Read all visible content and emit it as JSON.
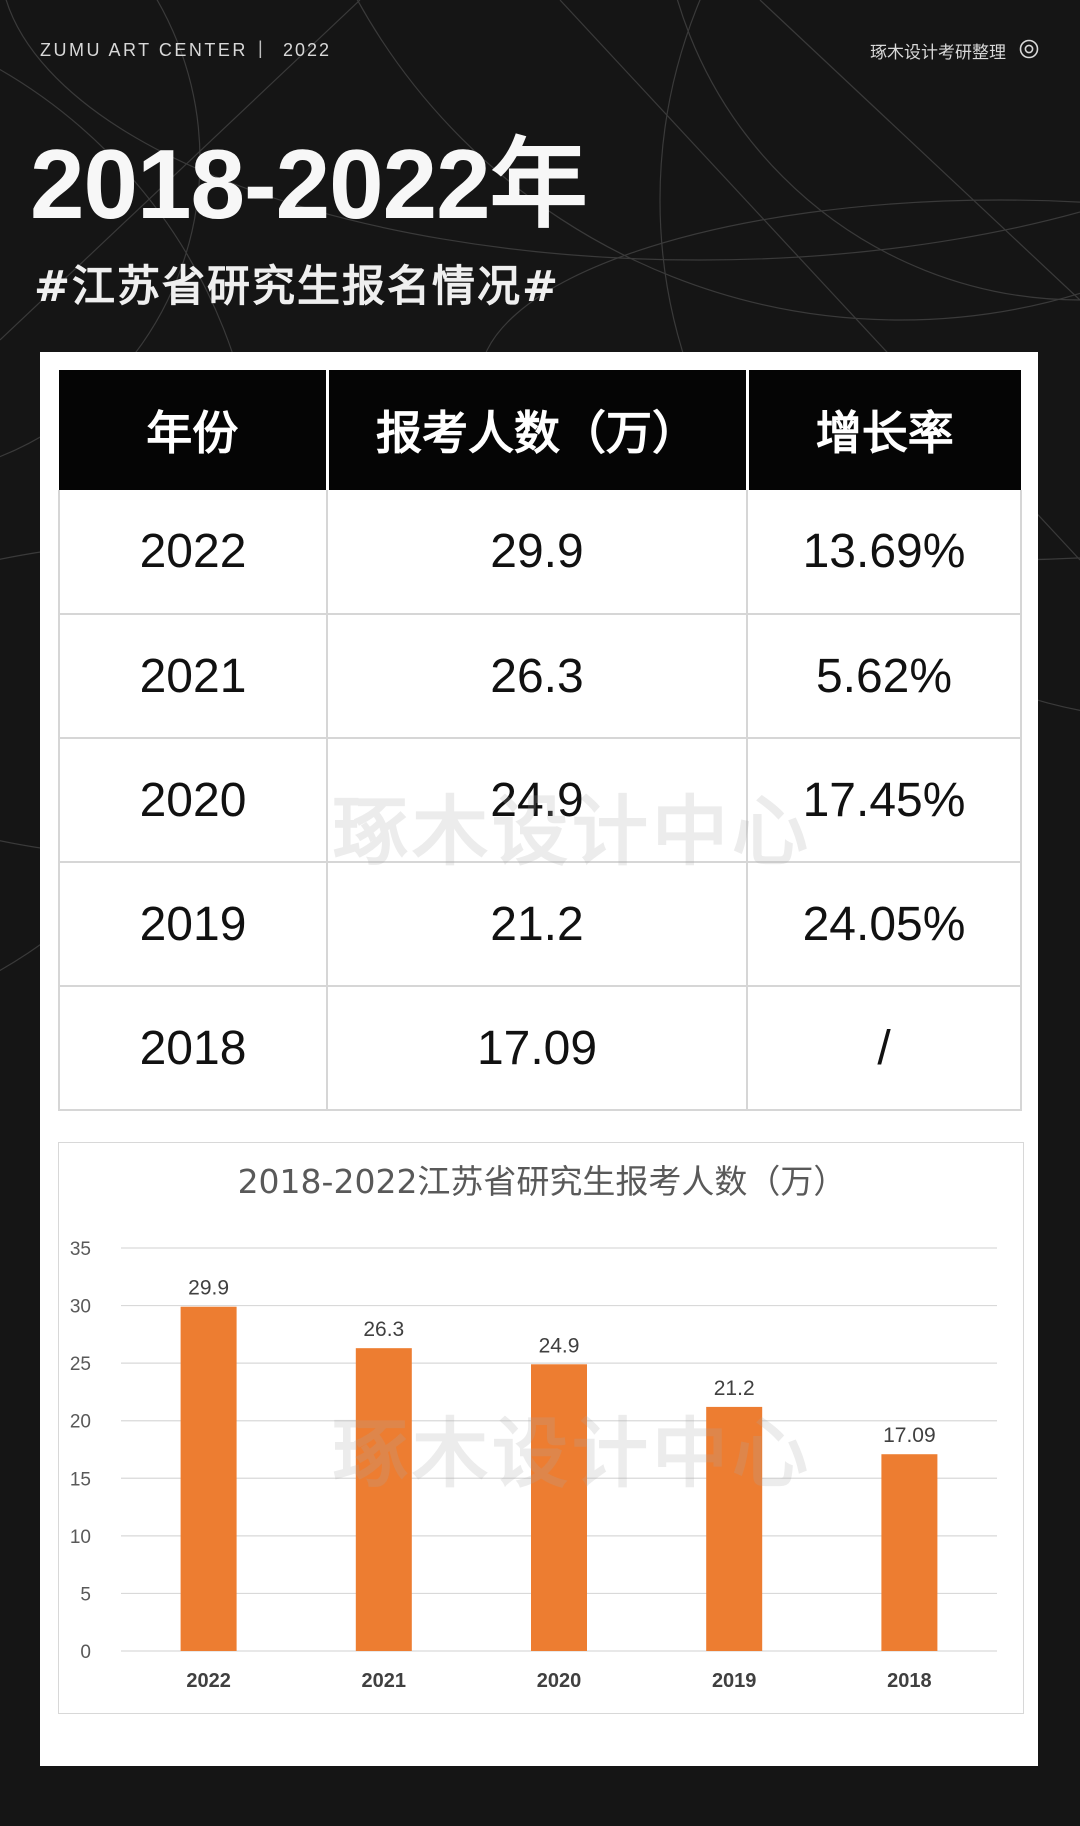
{
  "header": {
    "brand": "ZUMU ART CENTER",
    "separator": "|",
    "year": "2022",
    "credit": "琢木设计考研整理"
  },
  "title": "2018-2022年",
  "subtitle": "#江苏省研究生报名情况#",
  "table": {
    "headers": [
      "年份",
      "报考人数（万）",
      "增长率"
    ],
    "rows": [
      [
        "2022",
        "29.9",
        "13.69%"
      ],
      [
        "2021",
        "26.3",
        "5.62%"
      ],
      [
        "2020",
        "24.9",
        "17.45%"
      ],
      [
        "2019",
        "21.2",
        "24.05%"
      ],
      [
        "2018",
        "17.09",
        "/"
      ]
    ]
  },
  "watermark": "琢木设计中心",
  "chart_data": {
    "type": "bar",
    "title": "2018-2022江苏省研究生报考人数（万）",
    "categories": [
      "2022",
      "2021",
      "2020",
      "2019",
      "2018"
    ],
    "values": [
      29.9,
      26.3,
      24.9,
      21.2,
      17.09
    ],
    "value_labels": [
      "29.9",
      "26.3",
      "24.9",
      "21.2",
      "17.09"
    ],
    "ylim": [
      0,
      35
    ],
    "yticks": [
      0,
      5,
      10,
      15,
      20,
      25,
      30,
      35
    ],
    "grid": true,
    "bar_color": "#ED7D31"
  }
}
